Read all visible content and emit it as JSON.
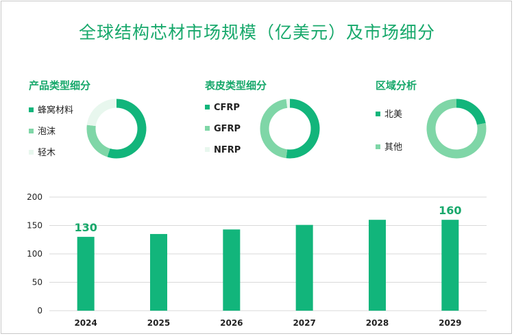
{
  "title": "全球结构芯材市场规模（亿美元）及市场细分",
  "colors": {
    "dark": "#12b57b",
    "mid": "#7fd6a7",
    "light": "#e8f7ee"
  },
  "panels": [
    {
      "title": "产品类型细分",
      "legend": [
        {
          "label": "蜂窝材料",
          "color": "#12b57b",
          "value": 0.55
        },
        {
          "label": "泡沫",
          "color": "#7fd6a7",
          "value": 0.22
        },
        {
          "label": "轻木",
          "color": "#e8f7ee",
          "value": 0.23
        }
      ]
    },
    {
      "title": "表皮类型细分",
      "legend": [
        {
          "label": "CFRP",
          "color": "#12b57b",
          "value": 0.52
        },
        {
          "label": "GFRP",
          "color": "#7fd6a7",
          "value": 0.46
        },
        {
          "label": "NFRP",
          "color": "#e8f7ee",
          "value": 0.02
        }
      ]
    },
    {
      "title": "区域分析",
      "legend": [
        {
          "label": "北美",
          "color": "#12b57b",
          "value": 0.22
        },
        {
          "label": "其他",
          "color": "#7fd6a7",
          "value": 0.78
        }
      ]
    }
  ],
  "chart_data": {
    "type": "bar",
    "categories": [
      "2024",
      "2025",
      "2026",
      "2027",
      "2028",
      "2029"
    ],
    "values": [
      130,
      135,
      143,
      151,
      160,
      160
    ],
    "data_labels": {
      "2024": "130",
      "2029": "160"
    },
    "ylim": [
      0,
      200
    ],
    "yticks": [
      "0",
      "50",
      "100",
      "150",
      "200"
    ],
    "grid": true,
    "bar_color": "#12b57b",
    "label_color": "#17a86b"
  }
}
